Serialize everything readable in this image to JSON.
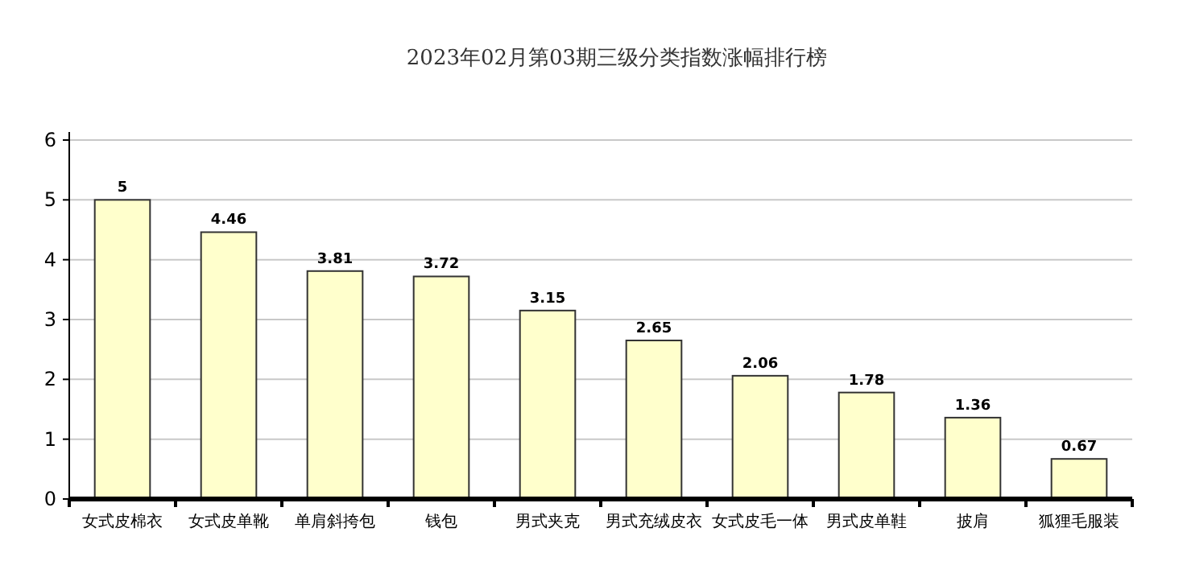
{
  "chart_data": {
    "type": "bar",
    "title": "2023年02月第03期三级分类指数涨幅排行榜",
    "categories": [
      "女式皮棉衣",
      "女式皮单靴",
      "单肩斜挎包",
      "钱包",
      "男式夹克",
      "男式充绒皮衣",
      "女式皮毛一体",
      "男式皮单鞋",
      "披肩",
      "狐狸毛服装"
    ],
    "values": [
      5,
      4.46,
      3.81,
      3.72,
      3.15,
      2.65,
      2.06,
      1.78,
      1.36,
      0.67
    ],
    "color": "#ffffcc",
    "ylim": [
      0,
      6
    ],
    "yticks": [
      0,
      1,
      2,
      3,
      4,
      5,
      6
    ],
    "grid": "y",
    "data_labels": true
  }
}
